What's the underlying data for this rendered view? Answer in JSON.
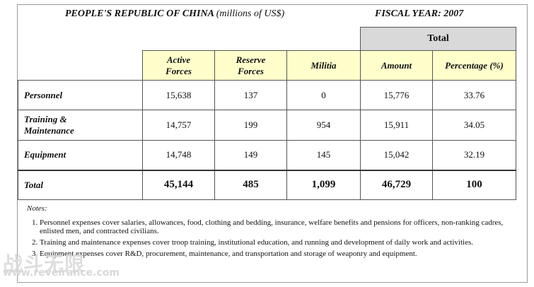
{
  "header": {
    "title": "PEOPLE'S REPUBLIC OF CHINA",
    "units": "(millions of US$)",
    "fiscal_year": "FISCAL YEAR: 2007"
  },
  "table": {
    "group_label": "Total",
    "columns": [
      "Active\nForces",
      "Reserve\nForces",
      "Militia",
      "Amount",
      "Percentage (%)"
    ],
    "rows": [
      {
        "label": "Personnel",
        "values": [
          "15,638",
          "137",
          "0",
          "15,776",
          "33.76"
        ]
      },
      {
        "label": "Training &\nMaintenance",
        "values": [
          "14,757",
          "199",
          "954",
          "15,911",
          "34.05"
        ]
      },
      {
        "label": "Equipment",
        "values": [
          "14,748",
          "149",
          "145",
          "15,042",
          "32.19"
        ]
      },
      {
        "label": "Total",
        "values": [
          "45,144",
          "485",
          "1,099",
          "46,729",
          "100"
        ]
      }
    ]
  },
  "notes": {
    "heading": "Notes:",
    "items": [
      "Personnel expenses cover salaries, allowances, food, clothing and bedding, insurance, welfare benefits and pensions for officers, non-ranking cadres, enlisted men, and contracted civilians.",
      "Training and maintenance expenses cover troop training, institutional education, and running and development of daily work and activities.",
      "Equipment expenses cover R&D, procurement, maintenance, and transportation and storage of weaponry and equipment."
    ]
  },
  "watermark": {
    "text": "战斗无限",
    "url": "www.reveirance.com"
  }
}
